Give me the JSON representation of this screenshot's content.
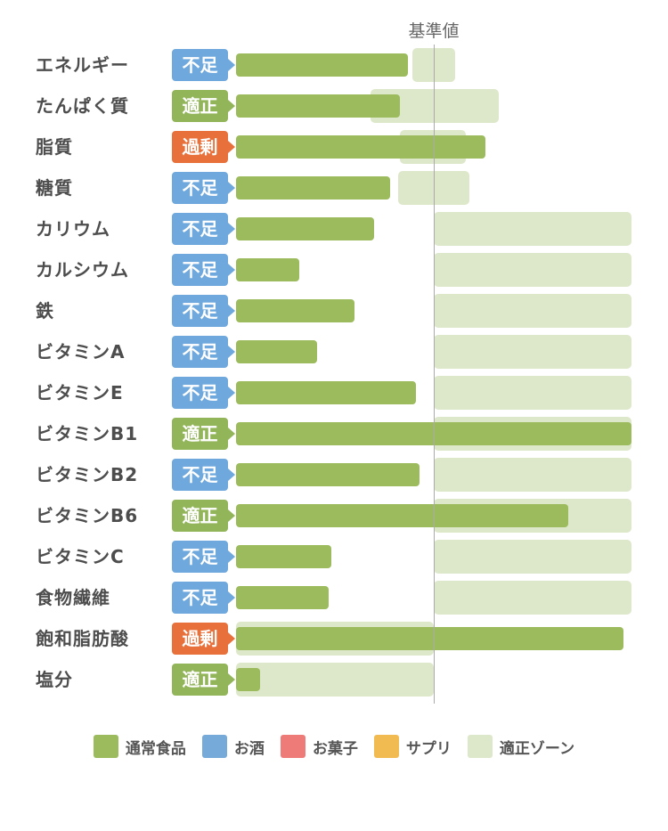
{
  "chart_data": {
    "type": "bar",
    "orientation": "horizontal",
    "title": "",
    "reference_label": "基準値",
    "reference_value": 100,
    "xlim": [
      0,
      200
    ],
    "unit": "% of reference",
    "categories": [
      "エネルギー",
      "たんぱく質",
      "脂質",
      "糖質",
      "カリウム",
      "カルシウム",
      "鉄",
      "ビタミンA",
      "ビタミンE",
      "ビタミンB1",
      "ビタミンB2",
      "ビタミンB6",
      "ビタミンC",
      "食物繊維",
      "飽和脂肪酸",
      "塩分"
    ],
    "status": [
      "不足",
      "適正",
      "過剰",
      "不足",
      "不足",
      "不足",
      "不足",
      "不足",
      "不足",
      "適正",
      "不足",
      "適正",
      "不足",
      "不足",
      "過剰",
      "適正"
    ],
    "series": [
      {
        "name": "通常食品",
        "color": "#9bbb5c",
        "values": [
          87,
          83,
          126,
          78,
          70,
          32,
          60,
          41,
          91,
          200,
          93,
          168,
          48,
          47,
          196,
          12
        ]
      }
    ],
    "optimal_zone": {
      "name": "適正ゾーン",
      "color": "#dde7c9",
      "ranges": [
        [
          89,
          111
        ],
        [
          68,
          133
        ],
        [
          83,
          116
        ],
        [
          82,
          118
        ],
        [
          100,
          200
        ],
        [
          100,
          200
        ],
        [
          100,
          200
        ],
        [
          100,
          200
        ],
        [
          100,
          200
        ],
        [
          100,
          200
        ],
        [
          100,
          200
        ],
        [
          100,
          200
        ],
        [
          100,
          200
        ],
        [
          100,
          200
        ],
        [
          0,
          100
        ],
        [
          0,
          100
        ]
      ]
    },
    "status_colors": {
      "不足": "#6fa8dc",
      "適正": "#92b55a",
      "過剰": "#e8703a"
    },
    "legend": [
      {
        "label": "通常食品",
        "color": "#9bbb5c"
      },
      {
        "label": "お酒",
        "color": "#75aad9"
      },
      {
        "label": "お菓子",
        "color": "#ee7b78"
      },
      {
        "label": "サプリ",
        "color": "#f2bb52"
      },
      {
        "label": "適正ゾーン",
        "color": "#dde7c9"
      }
    ],
    "legend_position": "bottom",
    "grid": false
  }
}
